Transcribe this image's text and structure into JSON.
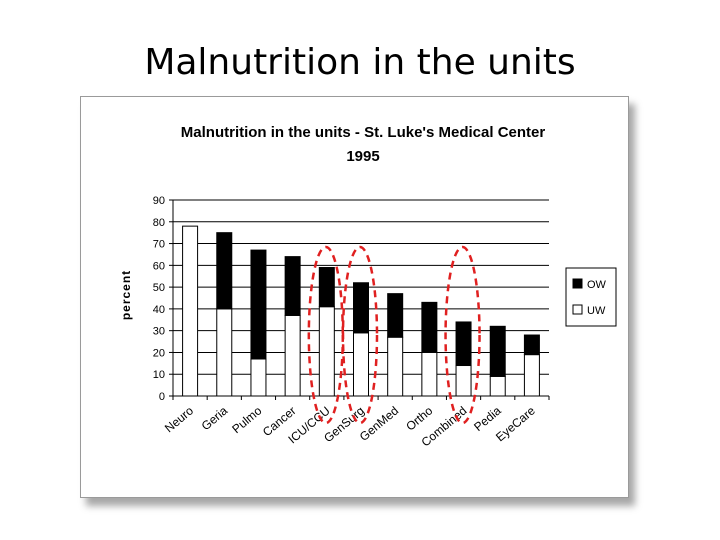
{
  "slide": {
    "title": "Malnutrition in the units"
  },
  "chart_data": {
    "type": "bar",
    "stacked": true,
    "title": "Malnutrition in the units - St. Luke's Medical Center",
    "subtitle": "1995",
    "ylabel": "percent",
    "xlabel": "",
    "ylim": [
      0,
      90
    ],
    "yticks": [
      0,
      10,
      20,
      30,
      40,
      50,
      60,
      70,
      80,
      90
    ],
    "grid": true,
    "legend": "right",
    "categories": [
      "Neuro",
      "Geria",
      "Pulmo",
      "Cancer",
      "ICU/CCU",
      "GenSurg",
      "GenMed",
      "Ortho",
      "Combined",
      "Pedia",
      "EyeCare"
    ],
    "series": [
      {
        "name": "UW",
        "color": "#ffffff",
        "values": [
          78,
          40,
          17,
          37,
          41,
          29,
          27,
          20,
          14,
          9,
          19
        ]
      },
      {
        "name": "OW",
        "color": "#000000",
        "values": [
          0,
          35,
          50,
          27,
          18,
          23,
          20,
          23,
          20,
          23,
          9
        ]
      }
    ],
    "highlight_color": "#e02020",
    "highlighted_categories": [
      "ICU/CCU",
      "GenSurg",
      "Combined"
    ]
  }
}
